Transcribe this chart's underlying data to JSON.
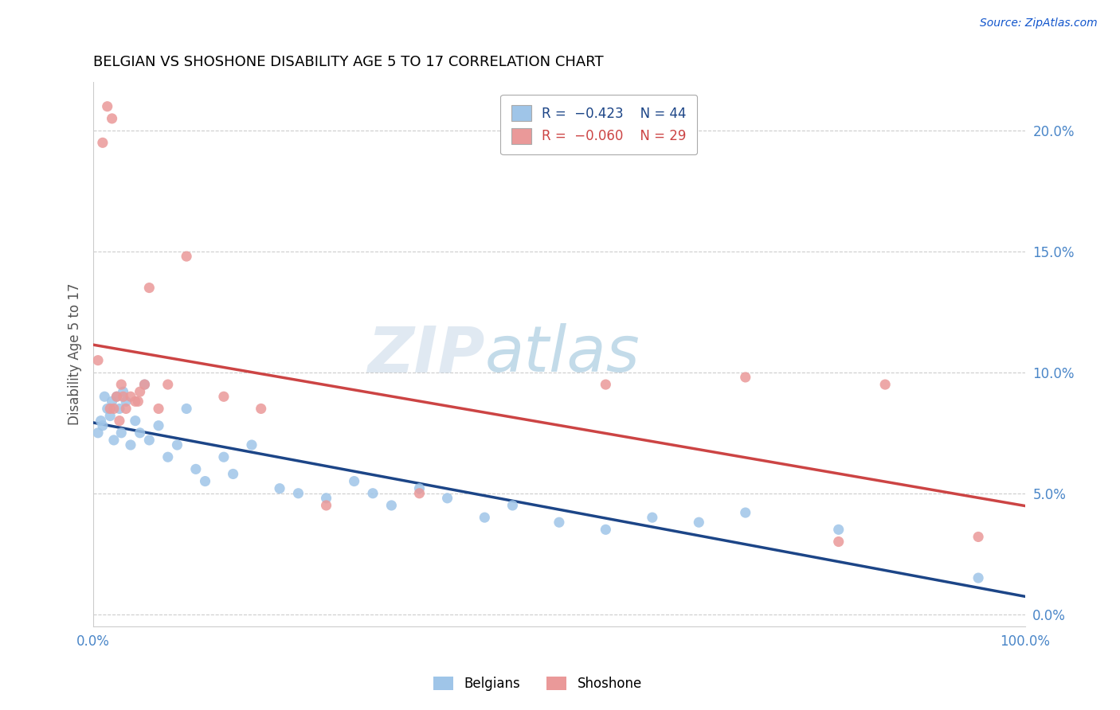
{
  "title": "BELGIAN VS SHOSHONE DISABILITY AGE 5 TO 17 CORRELATION CHART",
  "source": "Source: ZipAtlas.com",
  "ylabel": "Disability Age 5 to 17",
  "blue_color": "#9fc5e8",
  "pink_color": "#ea9999",
  "trend_blue": "#1c4587",
  "trend_pink": "#cc4444",
  "blue_x": [
    0.5,
    0.8,
    1.0,
    1.2,
    1.5,
    1.8,
    2.0,
    2.2,
    2.5,
    2.8,
    3.0,
    3.2,
    3.5,
    4.0,
    4.5,
    5.0,
    5.5,
    6.0,
    7.0,
    8.0,
    9.0,
    10.0,
    11.0,
    12.0,
    14.0,
    15.0,
    17.0,
    20.0,
    22.0,
    25.0,
    28.0,
    30.0,
    32.0,
    35.0,
    38.0,
    42.0,
    45.0,
    50.0,
    55.0,
    60.0,
    65.0,
    70.0,
    80.0,
    95.0
  ],
  "blue_y": [
    7.5,
    8.0,
    7.8,
    9.0,
    8.5,
    8.2,
    8.8,
    7.2,
    9.0,
    8.5,
    7.5,
    9.2,
    8.8,
    7.0,
    8.0,
    7.5,
    9.5,
    7.2,
    7.8,
    6.5,
    7.0,
    8.5,
    6.0,
    5.5,
    6.5,
    5.8,
    7.0,
    5.2,
    5.0,
    4.8,
    5.5,
    5.0,
    4.5,
    5.2,
    4.8,
    4.0,
    4.5,
    3.8,
    3.5,
    4.0,
    3.8,
    4.2,
    3.5,
    1.5
  ],
  "pink_x": [
    0.5,
    1.0,
    1.5,
    2.0,
    2.5,
    3.0,
    3.5,
    4.0,
    4.5,
    5.0,
    6.0,
    7.0,
    8.0,
    10.0,
    14.0,
    18.0,
    25.0,
    35.0,
    55.0,
    70.0,
    80.0,
    85.0,
    95.0,
    2.2,
    3.2,
    4.8,
    5.5,
    2.8,
    1.8
  ],
  "pink_y": [
    10.5,
    19.5,
    21.0,
    20.5,
    9.0,
    9.5,
    8.5,
    9.0,
    8.8,
    9.2,
    13.5,
    8.5,
    9.5,
    14.8,
    9.0,
    8.5,
    4.5,
    5.0,
    9.5,
    9.8,
    3.0,
    9.5,
    3.2,
    8.5,
    9.0,
    8.8,
    9.5,
    8.0,
    8.5
  ],
  "xlim": [
    0,
    100
  ],
  "ylim": [
    -0.5,
    22
  ],
  "yticks": [
    0,
    5,
    10,
    15,
    20
  ],
  "ytick_labels": [
    "0.0%",
    "5.0%",
    "10.0%",
    "15.0%",
    "20.0%"
  ],
  "xtick_positions": [
    0,
    100
  ],
  "xtick_labels": [
    "0.0%",
    "100.0%"
  ],
  "background_color": "#ffffff",
  "grid_color": "#cccccc",
  "title_color": "#000000",
  "axis_label_color": "#555555",
  "tick_color": "#4a86c8",
  "source_color": "#1155cc"
}
